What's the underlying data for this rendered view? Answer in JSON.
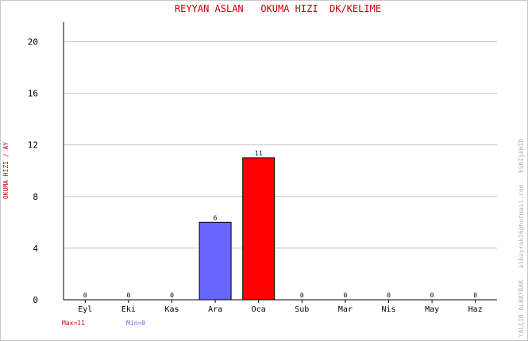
{
  "chart_data": {
    "type": "bar",
    "title": "REYYAN ASLAN   OKUMA HIZI  DK/KELIME",
    "ylabel": "OKUMA HIZI / AY",
    "xlabel": "",
    "categories": [
      "Eyl",
      "Eki",
      "Kas",
      "Ara",
      "Oca",
      "Sub",
      "Mar",
      "Nis",
      "May",
      "Haz"
    ],
    "values": [
      0,
      0,
      0,
      6,
      11,
      0,
      0,
      0,
      0,
      0
    ],
    "ylim": [
      0,
      21.5
    ],
    "yticks": [
      0,
      4,
      8,
      12,
      16,
      20
    ],
    "grid": true,
    "footer": {
      "max_label": "Max=11",
      "min_label": "Min=0"
    },
    "watermark": "YALÇIN ALBAYRAK   albayrak26@hotmail.com   ESKİŞEHİR",
    "colors": {
      "max_bar": "#ff0000",
      "min_bar": "#6666ff",
      "title": "#cc0000",
      "max_text": "#cc0000",
      "min_text": "#6666ff"
    }
  }
}
